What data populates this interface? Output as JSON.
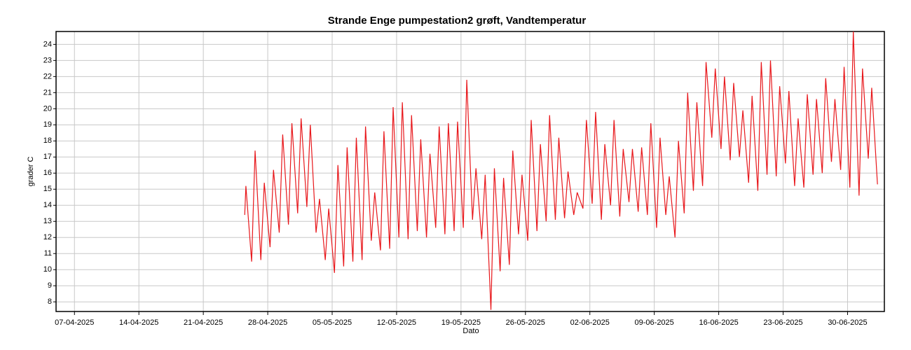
{
  "chart_data": {
    "type": "line",
    "title": "Strande Enge pumpestation2 grøft, Vandtemperatur",
    "x_label": "Dato",
    "y_label": "grader C",
    "xlim": [
      "05-04-2025",
      "04-07-2025"
    ],
    "xticks": [
      "07-04-2025",
      "14-04-2025",
      "21-04-2025",
      "28-04-2025",
      "05-05-2025",
      "12-05-2025",
      "19-05-2025",
      "26-05-2025",
      "02-06-2025",
      "09-06-2025",
      "16-06-2025",
      "23-06-2025",
      "30-06-2025"
    ],
    "ylim": [
      7.4,
      24.8
    ],
    "yticks": [
      8,
      9,
      10,
      11,
      12,
      13,
      14,
      15,
      16,
      17,
      18,
      19,
      20,
      21,
      22,
      23,
      24
    ],
    "grid": true,
    "x": [
      "25-04-2025 12:00",
      "25-04-2025 15:00",
      "26-04-2025 06:00",
      "26-04-2025 15:00",
      "27-04-2025 06:00",
      "27-04-2025 15:00",
      "28-04-2025 06:00",
      "28-04-2025 15:00",
      "29-04-2025 06:00",
      "29-04-2025 15:00",
      "30-04-2025 06:00",
      "30-04-2025 15:00",
      "01-05-2025 06:00",
      "01-05-2025 15:00",
      "02-05-2025 06:00",
      "02-05-2025 15:00",
      "03-05-2025 06:00",
      "03-05-2025 15:00",
      "04-05-2025 06:00",
      "04-05-2025 15:00",
      "05-05-2025 06:00",
      "05-05-2025 15:00",
      "06-05-2025 06:00",
      "06-05-2025 15:00",
      "07-05-2025 06:00",
      "07-05-2025 15:00",
      "08-05-2025 06:00",
      "08-05-2025 15:00",
      "09-05-2025 06:00",
      "09-05-2025 15:00",
      "10-05-2025 06:00",
      "10-05-2025 15:00",
      "11-05-2025 06:00",
      "11-05-2025 15:00",
      "12-05-2025 06:00",
      "12-05-2025 15:00",
      "13-05-2025 06:00",
      "13-05-2025 15:00",
      "14-05-2025 06:00",
      "14-05-2025 15:00",
      "15-05-2025 06:00",
      "15-05-2025 15:00",
      "16-05-2025 06:00",
      "16-05-2025 15:00",
      "17-05-2025 06:00",
      "17-05-2025 15:00",
      "18-05-2025 06:00",
      "18-05-2025 15:00",
      "19-05-2025 06:00",
      "19-05-2025 15:00",
      "20-05-2025 06:00",
      "20-05-2025 15:00",
      "21-05-2025 06:00",
      "21-05-2025 15:00",
      "22-05-2025 06:00",
      "22-05-2025 15:00",
      "23-05-2025 06:00",
      "23-05-2025 15:00",
      "24-05-2025 06:00",
      "24-05-2025 15:00",
      "25-05-2025 06:00",
      "25-05-2025 15:00",
      "26-05-2025 06:00",
      "26-05-2025 15:00",
      "27-05-2025 06:00",
      "27-05-2025 15:00",
      "28-05-2025 06:00",
      "28-05-2025 15:00",
      "29-05-2025 06:00",
      "29-05-2025 15:00",
      "30-05-2025 06:00",
      "30-05-2025 15:00",
      "31-05-2025 06:00",
      "31-05-2025 15:00",
      "01-06-2025 06:00",
      "01-06-2025 15:00",
      "02-06-2025 06:00",
      "02-06-2025 15:00",
      "03-06-2025 06:00",
      "03-06-2025 15:00",
      "04-06-2025 06:00",
      "04-06-2025 15:00",
      "05-06-2025 06:00",
      "05-06-2025 15:00",
      "06-06-2025 06:00",
      "06-06-2025 15:00",
      "07-06-2025 06:00",
      "07-06-2025 15:00",
      "08-06-2025 06:00",
      "08-06-2025 15:00",
      "09-06-2025 06:00",
      "09-06-2025 15:00",
      "10-06-2025 06:00",
      "10-06-2025 15:00",
      "11-06-2025 06:00",
      "11-06-2025 15:00",
      "12-06-2025 06:00",
      "12-06-2025 15:00",
      "13-06-2025 06:00",
      "13-06-2025 15:00",
      "14-06-2025 06:00",
      "14-06-2025 15:00",
      "15-06-2025 06:00",
      "15-06-2025 15:00",
      "16-06-2025 06:00",
      "16-06-2025 15:00",
      "17-06-2025 06:00",
      "17-06-2025 15:00",
      "18-06-2025 06:00",
      "18-06-2025 15:00",
      "19-06-2025 06:00",
      "19-06-2025 15:00",
      "20-06-2025 06:00",
      "20-06-2025 15:00",
      "21-06-2025 06:00",
      "21-06-2025 15:00",
      "22-06-2025 06:00",
      "22-06-2025 15:00",
      "23-06-2025 06:00",
      "23-06-2025 15:00",
      "24-06-2025 06:00",
      "24-06-2025 15:00",
      "25-06-2025 06:00",
      "25-06-2025 15:00",
      "26-06-2025 06:00",
      "26-06-2025 15:00",
      "27-06-2025 06:00",
      "27-06-2025 15:00",
      "28-06-2025 06:00",
      "28-06-2025 15:00",
      "29-06-2025 06:00",
      "29-06-2025 15:00",
      "30-06-2025 06:00",
      "30-06-2025 15:00",
      "01-07-2025 06:00",
      "01-07-2025 15:00",
      "02-07-2025 06:00",
      "02-07-2025 15:00",
      "03-07-2025 06:00"
    ],
    "series": [
      {
        "name": "Vandtemperatur",
        "color": "#e8171b",
        "values": [
          13.4,
          15.2,
          10.5,
          17.4,
          10.6,
          15.4,
          11.4,
          16.2,
          12.3,
          18.4,
          12.8,
          19.1,
          13.5,
          19.4,
          13.9,
          19.0,
          12.3,
          14.4,
          10.6,
          13.8,
          9.8,
          16.5,
          10.2,
          17.6,
          10.5,
          18.2,
          10.6,
          18.9,
          11.8,
          14.8,
          11.2,
          18.6,
          11.3,
          20.1,
          12.0,
          20.4,
          11.9,
          19.6,
          12.4,
          18.1,
          12.0,
          17.2,
          12.6,
          18.9,
          12.2,
          19.1,
          12.4,
          19.2,
          12.6,
          21.8,
          13.1,
          16.3,
          11.9,
          15.9,
          7.5,
          16.3,
          9.9,
          15.7,
          10.3,
          17.4,
          12.2,
          15.9,
          11.8,
          19.3,
          12.4,
          17.8,
          13.0,
          19.6,
          13.1,
          18.2,
          13.2,
          16.1,
          13.4,
          14.8,
          13.8,
          19.3,
          14.1,
          19.8,
          13.1,
          17.8,
          14.0,
          19.3,
          13.3,
          17.5,
          14.2,
          17.5,
          13.6,
          17.6,
          13.4,
          19.1,
          12.6,
          18.2,
          13.4,
          15.8,
          12.0,
          18.0,
          13.5,
          21.0,
          14.9,
          20.4,
          15.2,
          22.9,
          18.2,
          22.5,
          17.5,
          22.0,
          16.8,
          21.6,
          17.0,
          19.9,
          15.4,
          20.8,
          14.9,
          22.9,
          15.9,
          23.0,
          15.8,
          21.4,
          16.6,
          21.1,
          15.2,
          19.4,
          15.1,
          20.9,
          15.9,
          20.6,
          16.0,
          21.9,
          16.7,
          20.6,
          16.2,
          22.6,
          15.1,
          24.8,
          14.6,
          22.5,
          16.9,
          21.3,
          15.3
        ]
      }
    ]
  }
}
